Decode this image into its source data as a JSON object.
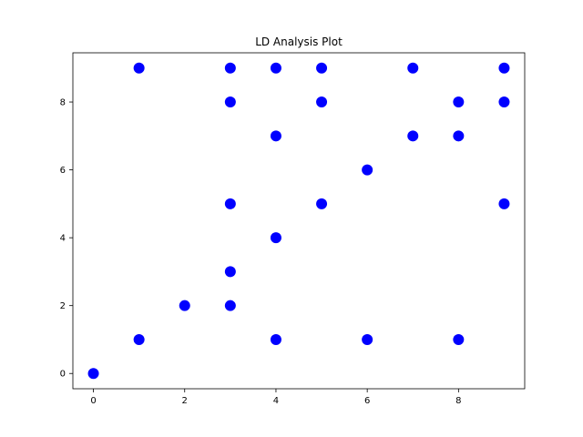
{
  "chart_data": {
    "type": "scatter",
    "title": "LD Analysis Plot",
    "xlabel": "",
    "ylabel": "",
    "xlim": [
      -0.45,
      9.45
    ],
    "ylim": [
      -0.45,
      9.45
    ],
    "x_ticks": [
      0,
      2,
      4,
      6,
      8
    ],
    "y_ticks": [
      0,
      2,
      4,
      6,
      8
    ],
    "grid": false,
    "marker_color": "#0000ff",
    "points": [
      {
        "x": 0,
        "y": 0
      },
      {
        "x": 1,
        "y": 1
      },
      {
        "x": 1,
        "y": 9
      },
      {
        "x": 2,
        "y": 2
      },
      {
        "x": 3,
        "y": 2
      },
      {
        "x": 3,
        "y": 3
      },
      {
        "x": 3,
        "y": 5
      },
      {
        "x": 3,
        "y": 8
      },
      {
        "x": 3,
        "y": 9
      },
      {
        "x": 4,
        "y": 1
      },
      {
        "x": 4,
        "y": 4
      },
      {
        "x": 4,
        "y": 7
      },
      {
        "x": 4,
        "y": 9
      },
      {
        "x": 5,
        "y": 5
      },
      {
        "x": 5,
        "y": 8
      },
      {
        "x": 5,
        "y": 9
      },
      {
        "x": 6,
        "y": 1
      },
      {
        "x": 6,
        "y": 6
      },
      {
        "x": 7,
        "y": 7
      },
      {
        "x": 7,
        "y": 9
      },
      {
        "x": 8,
        "y": 1
      },
      {
        "x": 8,
        "y": 7
      },
      {
        "x": 8,
        "y": 8
      },
      {
        "x": 9,
        "y": 5
      },
      {
        "x": 9,
        "y": 8
      },
      {
        "x": 9,
        "y": 9
      }
    ]
  }
}
